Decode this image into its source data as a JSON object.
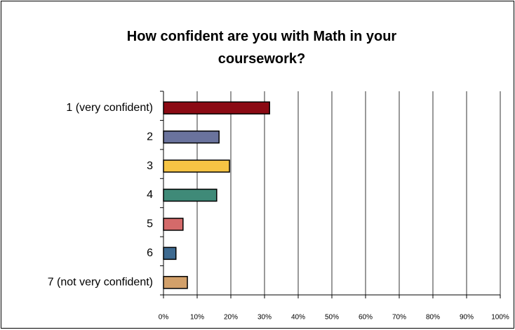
{
  "chart_data": {
    "type": "bar",
    "orientation": "horizontal",
    "title": "How confident are you with Math in your coursework?",
    "categories": [
      "1 (very confident)",
      "2",
      "3",
      "4",
      "5",
      "6",
      "7 (not very confident)"
    ],
    "values": [
      31.5,
      16.5,
      19.6,
      15.8,
      5.8,
      3.7,
      7.1
    ],
    "colors": [
      "#8b0a14",
      "#6a739d",
      "#f6c444",
      "#3f8a78",
      "#d46a6a",
      "#3e6a90",
      "#d2a06a"
    ],
    "xlim": [
      0,
      100
    ],
    "xticks": [
      {
        "value": 0,
        "label": "0%"
      },
      {
        "value": 10,
        "label": "10%"
      },
      {
        "value": 20,
        "label": "20%"
      },
      {
        "value": 30,
        "label": "30%"
      },
      {
        "value": 40,
        "label": "40%"
      },
      {
        "value": 50,
        "label": "50%"
      },
      {
        "value": 60,
        "label": "60%"
      },
      {
        "value": 70,
        "label": "70%"
      },
      {
        "value": 80,
        "label": "80%"
      },
      {
        "value": 90,
        "label": "90%"
      },
      {
        "value": 100,
        "label": "100%"
      }
    ],
    "grid": true
  }
}
